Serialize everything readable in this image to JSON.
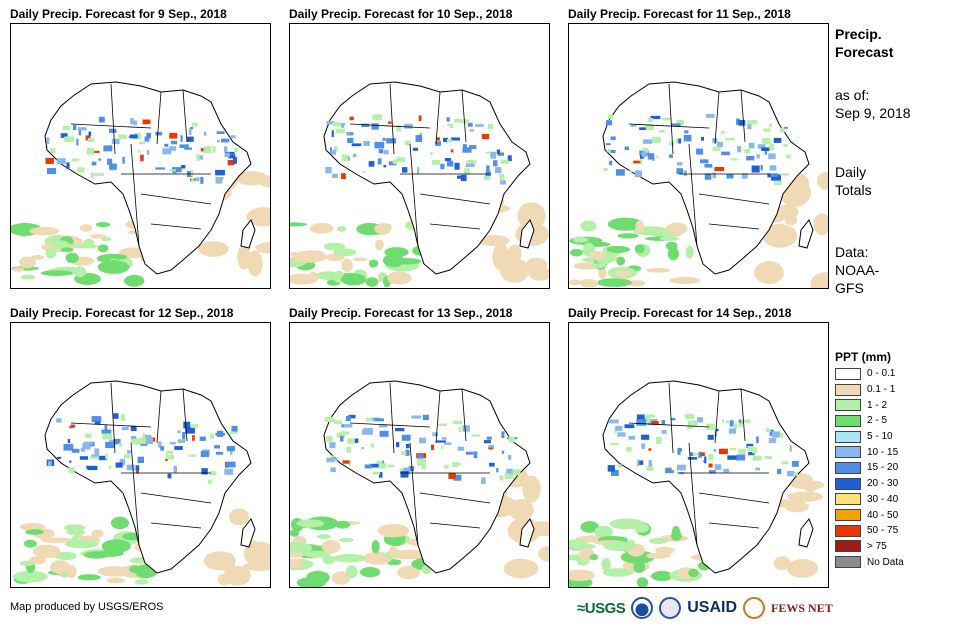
{
  "panels": [
    {
      "title": "Daily Precip. Forecast for 9 Sep., 2018"
    },
    {
      "title": "Daily Precip. Forecast for 10 Sep., 2018"
    },
    {
      "title": "Daily Precip. Forecast for 11 Sep., 2018"
    },
    {
      "title": "Daily Precip. Forecast for 12 Sep., 2018"
    },
    {
      "title": "Daily Precip. Forecast for 13 Sep., 2018"
    },
    {
      "title": "Daily Precip. Forecast for 14 Sep., 2018"
    }
  ],
  "sidebar": {
    "title_line1": "Precip.",
    "title_line2": "Forecast",
    "asof_line1": "as of:",
    "asof_line2": "Sep 9, 2018",
    "totals_line1": "Daily",
    "totals_line2": "Totals",
    "data_line1": "Data:",
    "data_line2": "NOAA-",
    "data_line3": "GFS"
  },
  "legend": {
    "title": "PPT (mm)",
    "items": [
      {
        "label": "0 - 0.1",
        "color": "#ffffff"
      },
      {
        "label": "0.1 - 1",
        "color": "#f0d9b5"
      },
      {
        "label": "1 - 2",
        "color": "#b4f0a8"
      },
      {
        "label": "2 - 5",
        "color": "#6fdc6f"
      },
      {
        "label": "5 - 10",
        "color": "#a9e6f5"
      },
      {
        "label": "10 - 15",
        "color": "#88b8ee"
      },
      {
        "label": "15 - 20",
        "color": "#4f8fe6"
      },
      {
        "label": "20 - 30",
        "color": "#1f5fd6"
      },
      {
        "label": "30 - 40",
        "color": "#ffe27a"
      },
      {
        "label": "40 - 50",
        "color": "#f5a300"
      },
      {
        "label": "50 - 75",
        "color": "#e83a00"
      },
      {
        "label": "> 75",
        "color": "#a01818"
      },
      {
        "label": "No Data",
        "color": "#8c8c8c"
      }
    ]
  },
  "footer": {
    "credit": "Map produced by USGS/EROS",
    "logo_usgs": "≈USGS",
    "logo_usaid": "USAID",
    "logo_fews": "FEWS NET"
  }
}
